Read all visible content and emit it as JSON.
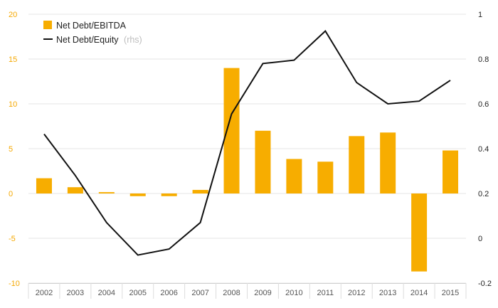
{
  "chart_data": {
    "type": "bar+line",
    "categories": [
      "2002",
      "2003",
      "2004",
      "2005",
      "2006",
      "2007",
      "2008",
      "2009",
      "2010",
      "2011",
      "2012",
      "2013",
      "2014",
      "2015"
    ],
    "series": [
      {
        "name": "Net Debt/EBITDA",
        "type": "bar",
        "axis": "left",
        "color": "#f7ad00",
        "values": [
          1.7,
          0.7,
          0.15,
          -0.3,
          -0.3,
          0.4,
          14.0,
          7.0,
          3.85,
          3.55,
          6.4,
          6.8,
          -8.7,
          4.8
        ]
      },
      {
        "name": "Net Debt/Equity",
        "type": "line",
        "axis": "right",
        "color": "#111111",
        "values": [
          0.465,
          0.28,
          0.07,
          -0.075,
          -0.048,
          0.07,
          0.555,
          0.78,
          0.795,
          0.925,
          0.695,
          0.6,
          0.612,
          0.705
        ]
      }
    ],
    "left_axis": {
      "min": -10,
      "max": 20,
      "ticks": [
        "20",
        "15",
        "10",
        "5",
        "0",
        "-5",
        "-10"
      ],
      "color": "#f5a800"
    },
    "right_axis": {
      "min": -0.2,
      "max": 1.0,
      "ticks": [
        "1",
        "0.8",
        "0.6",
        "0.4",
        "0.2",
        "0",
        "-0.2"
      ]
    },
    "legend": {
      "position": "top-left",
      "items": [
        {
          "label": "Net Debt/EBITDA",
          "suffix": ""
        },
        {
          "label": "Net Debt/Equity",
          "suffix": "(rhs)"
        }
      ]
    },
    "grid": true
  }
}
